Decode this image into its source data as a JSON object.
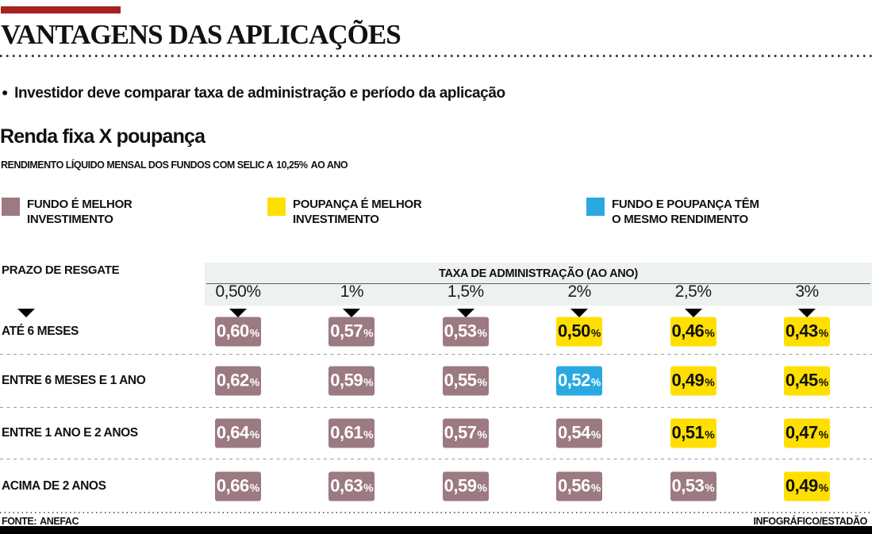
{
  "colors": {
    "accent_red": "#a82320",
    "band_bg": "#edf1ef",
    "fund": "#9c7a81",
    "savings": "#ffdf00",
    "equal": "#29a9e0"
  },
  "header": {
    "title": "VANTAGENS DAS APLICAÇÕES",
    "bullet_icon": "circle-bullet-icon",
    "bullet": "Investidor deve comparar taxa de administração e período da aplicação",
    "section_title": "Renda fixa X poupança",
    "subtitle_prefix": "RENDIMENTO LÍQUIDO MENSAL DOS FUNDOS COM SELIC A",
    "subtitle_rate": "10,25%",
    "subtitle_suffix": "AO ANO"
  },
  "legend": {
    "items": [
      {
        "id": "fund",
        "lines": [
          "FUNDO É MELHOR",
          "INVESTIMENTO"
        ]
      },
      {
        "id": "savings",
        "lines": [
          "POUPANÇA É MELHOR",
          "INVESTIMENTO"
        ]
      },
      {
        "id": "equal",
        "lines": [
          "FUNDO E POUPANÇA TÊM",
          "O MESMO RENDIMENTO"
        ]
      }
    ]
  },
  "chart_data": {
    "type": "table",
    "title": "Renda fixa X poupança",
    "subtitle": "RENDIMENTO LÍQUIDO MENSAL DOS FUNDOS COM SELIC A 10,25% AO ANO",
    "row_header": "PRAZO DE RESGATE",
    "column_group_header": "TAXA DE ADMINISTRAÇÃO (AO ANO)",
    "columns": [
      "0,50%",
      "1%",
      "1,5%",
      "2%",
      "2,5%",
      "3%"
    ],
    "cell_categories": {
      "fund": "FUNDO É MELHOR INVESTIMENTO",
      "savings": "POUPANÇA É MELHOR INVESTIMENTO",
      "equal": "FUNDO E POUPANÇA TÊM O MESMO RENDIMENTO"
    },
    "unit": "%",
    "rows": [
      {
        "label": "ATÉ 6 MESES",
        "cells": [
          {
            "value": "0,60",
            "type": "fund"
          },
          {
            "value": "0,57",
            "type": "fund"
          },
          {
            "value": "0,53",
            "type": "fund"
          },
          {
            "value": "0,50",
            "type": "savings"
          },
          {
            "value": "0,46",
            "type": "savings"
          },
          {
            "value": "0,43",
            "type": "savings"
          }
        ]
      },
      {
        "label": "ENTRE 6 MESES E 1 ANO",
        "cells": [
          {
            "value": "0,62",
            "type": "fund"
          },
          {
            "value": "0,59",
            "type": "fund"
          },
          {
            "value": "0,55",
            "type": "fund"
          },
          {
            "value": "0,52",
            "type": "equal"
          },
          {
            "value": "0,49",
            "type": "savings"
          },
          {
            "value": "0,45",
            "type": "savings"
          }
        ]
      },
      {
        "label": "ENTRE 1 ANO E 2 ANOS",
        "cells": [
          {
            "value": "0,64",
            "type": "fund"
          },
          {
            "value": "0,61",
            "type": "fund"
          },
          {
            "value": "0,57",
            "type": "fund"
          },
          {
            "value": "0,54",
            "type": "fund"
          },
          {
            "value": "0,51",
            "type": "savings"
          },
          {
            "value": "0,47",
            "type": "savings"
          }
        ]
      },
      {
        "label": "ACIMA DE 2 ANOS",
        "cells": [
          {
            "value": "0,66",
            "type": "fund"
          },
          {
            "value": "0,63",
            "type": "fund"
          },
          {
            "value": "0,59",
            "type": "fund"
          },
          {
            "value": "0,56",
            "type": "fund"
          },
          {
            "value": "0,53",
            "type": "fund"
          },
          {
            "value": "0,49",
            "type": "savings"
          }
        ]
      }
    ]
  },
  "footer": {
    "source_label": "FONTE:",
    "source": "ANEFAC",
    "credit": "INFOGRÁFICO/ESTADÃO"
  }
}
